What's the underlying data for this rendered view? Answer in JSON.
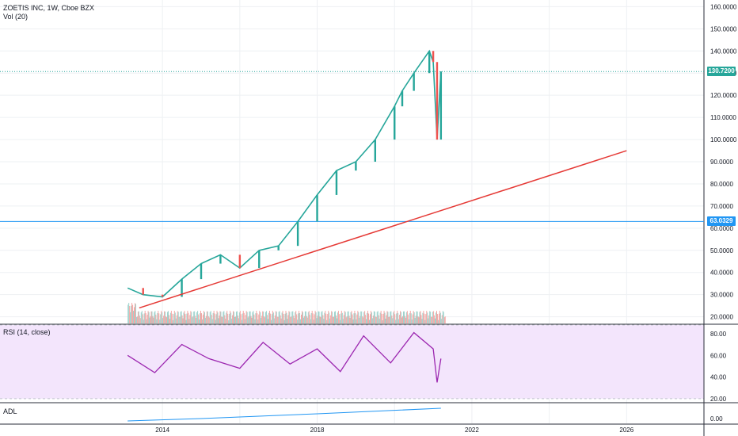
{
  "header": {
    "symbol_title": "ZOETIS INC, 1W, Cboe BZX",
    "volume_label": "Vol (20)"
  },
  "price_axis": {
    "ticks": [
      "160.0000",
      "150.0000",
      "140.0000",
      "130.0000",
      "120.0000",
      "110.0000",
      "100.0000",
      "90.0000",
      "80.0000",
      "70.0000",
      "60.0000",
      "50.0000",
      "40.0000",
      "30.0000",
      "20.0000"
    ],
    "tick_values": [
      160,
      150,
      140,
      130,
      120,
      110,
      100,
      90,
      80,
      70,
      60,
      50,
      40,
      30,
      20
    ]
  },
  "price_tags": [
    {
      "label": "130.7200",
      "value": 130.72,
      "color": "#26a69a",
      "line_style": "dotted"
    },
    {
      "label": "63.0329",
      "value": 63.0329,
      "color": "#2196f3",
      "line_style": "solid"
    }
  ],
  "rsi_panel": {
    "label": "RSI (14, close)",
    "ticks": [
      "80.00",
      "60.00",
      "40.00",
      "20.00"
    ],
    "tick_values": [
      80,
      60,
      40,
      20
    ],
    "band_color": "#f3e5fc",
    "line_color": "#9c27b0"
  },
  "adl_panel": {
    "label": "ADL",
    "ticks": [
      "0.00"
    ],
    "line_color": "#2196f3"
  },
  "time_axis": {
    "ticks": [
      "2014",
      "2018",
      "2022",
      "2026"
    ]
  },
  "colors": {
    "up": "#26a69a",
    "down": "#ef5350",
    "trendline": "#e53935",
    "grid": "#eef0f3"
  },
  "chart_data": {
    "type": "line",
    "title": "ZOETIS INC, 1W, Cboe BZX",
    "x": [
      2013.1,
      2013.5,
      2014.0,
      2014.5,
      2015.0,
      2015.5,
      2016.0,
      2016.5,
      2017.0,
      2017.5,
      2018.0,
      2018.5,
      2019.0,
      2019.5,
      2020.0,
      2020.2,
      2020.5,
      2020.9,
      2021.0,
      2021.1,
      2021.2
    ],
    "series": [
      {
        "values": [
          33,
          30,
          29,
          37,
          44,
          48,
          42,
          50,
          52,
          63,
          75,
          86,
          90,
          100,
          115,
          122,
          130,
          140,
          135,
          100,
          130.72
        ]
      }
    ],
    "ylim": [
      17,
      163
    ],
    "xlim": [
      2009.8,
      2028.0
    ],
    "rsi": {
      "x": [
        2013.1,
        2013.8,
        2014.5,
        2015.2,
        2016.0,
        2016.6,
        2017.3,
        2018.0,
        2018.6,
        2019.2,
        2019.9,
        2020.5,
        2021.0,
        2021.1,
        2021.2
      ],
      "values": [
        60,
        44,
        70,
        57,
        48,
        72,
        52,
        66,
        45,
        78,
        53,
        81,
        66,
        35,
        57
      ],
      "ylim": [
        17,
        88
      ]
    },
    "trendline": {
      "x": [
        2013.4,
        2026.0
      ],
      "y": [
        24,
        95
      ]
    }
  }
}
